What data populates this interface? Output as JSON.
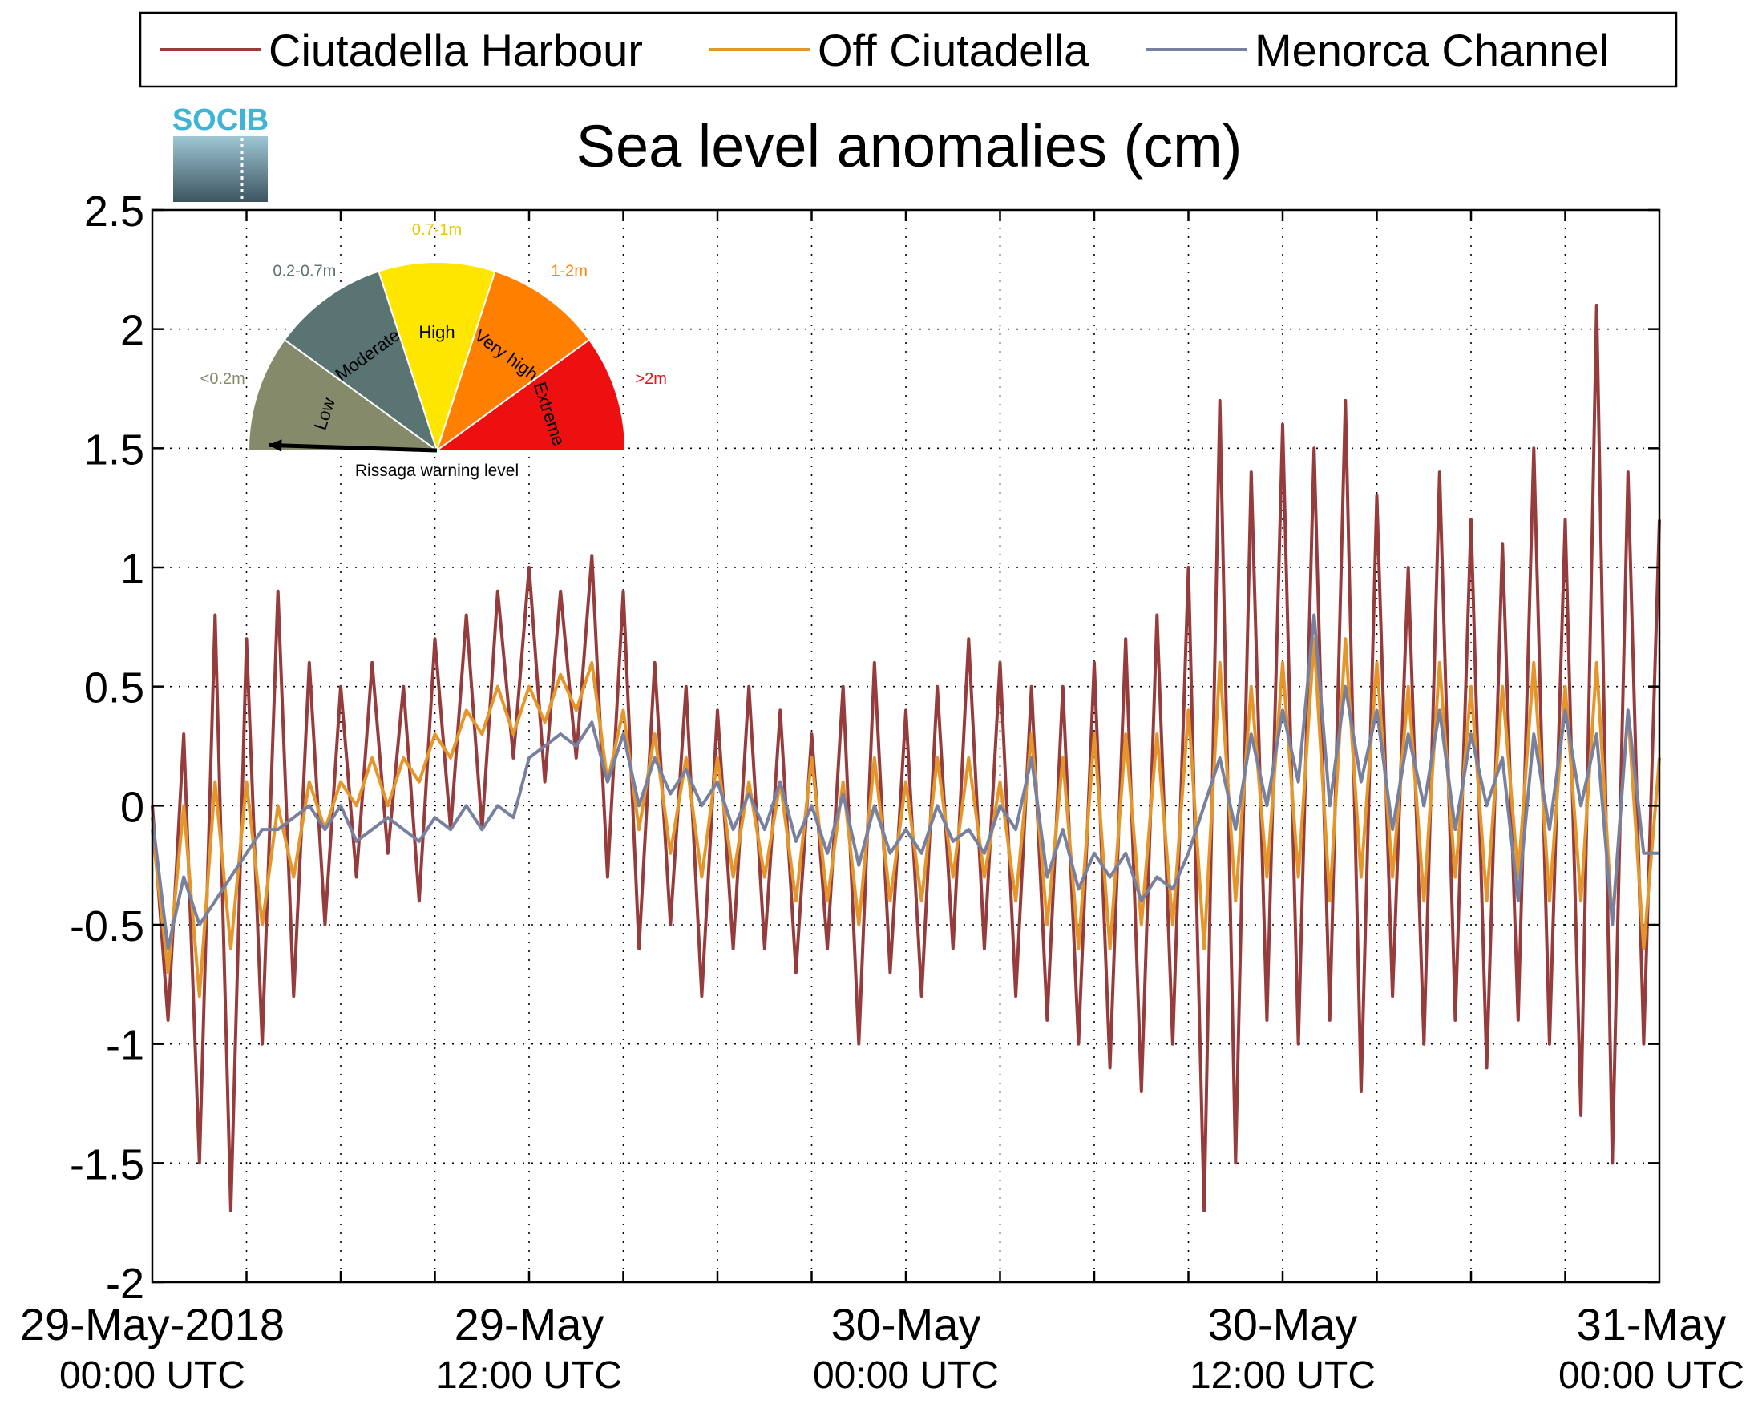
{
  "chart_data": {
    "type": "line",
    "title": "Sea level anomalies (cm)",
    "logo_text": "SOCIB",
    "ylim": [
      -2,
      2.5
    ],
    "y_ticks": [
      -2,
      -1.5,
      -1,
      -0.5,
      0,
      0.5,
      1,
      1.5,
      2,
      2.5
    ],
    "y_tick_labels": [
      "-2",
      "-1.5",
      "-1",
      "-0.5",
      "0",
      "0.5",
      "1",
      "1.5",
      "2",
      "2.5"
    ],
    "xlim_hours": [
      0,
      48
    ],
    "x_tick_labels": [
      {
        "h": 0,
        "line1": "29-May-2018",
        "line2": "00:00 UTC"
      },
      {
        "h": 12,
        "line1": "29-May",
        "line2": "12:00 UTC"
      },
      {
        "h": 24,
        "line1": "30-May",
        "line2": "00:00 UTC"
      },
      {
        "h": 36,
        "line1": "30-May",
        "line2": "12:00 UTC"
      },
      {
        "h": 48,
        "line1": "31-May",
        "line2": "00:00 UTC"
      }
    ],
    "grid": true,
    "legend_position": "top",
    "series": [
      {
        "name": "Ciutadella Harbour",
        "color": "#963c3c",
        "x_hours": [
          0,
          0.5,
          1,
          1.5,
          2,
          2.5,
          3,
          3.5,
          4,
          4.5,
          5,
          5.5,
          6,
          6.5,
          7,
          7.5,
          8,
          8.5,
          9,
          9.5,
          10,
          10.5,
          11,
          11.5,
          12,
          12.5,
          13,
          13.5,
          14,
          14.5,
          15,
          15.5,
          16,
          16.5,
          17,
          17.5,
          18,
          18.5,
          19,
          19.5,
          20,
          20.5,
          21,
          21.5,
          22,
          22.5,
          23,
          23.5,
          24,
          24.5,
          25,
          25.5,
          26,
          26.5,
          27,
          27.5,
          28,
          28.5,
          29,
          29.5,
          30,
          30.5,
          31,
          31.5,
          32,
          32.5,
          33,
          33.5,
          34,
          34.5,
          35,
          35.5,
          36,
          36.5,
          37,
          37.5,
          38,
          38.5,
          39,
          39.5,
          40,
          40.5,
          41,
          41.5,
          42,
          42.5,
          43,
          43.5,
          44,
          44.5,
          45,
          45.5,
          46,
          46.5,
          47,
          47.5,
          48
        ],
        "values": [
          0,
          -0.9,
          0.3,
          -1.5,
          0.8,
          -1.7,
          0.7,
          -1.0,
          0.9,
          -0.8,
          0.6,
          -0.5,
          0.5,
          -0.3,
          0.6,
          -0.2,
          0.5,
          -0.4,
          0.7,
          -0.1,
          0.8,
          -0.1,
          0.9,
          0.2,
          1.0,
          0.1,
          0.9,
          0.2,
          1.05,
          -0.3,
          0.9,
          -0.6,
          0.6,
          -0.5,
          0.5,
          -0.8,
          0.4,
          -0.6,
          0.5,
          -0.6,
          0.4,
          -0.7,
          0.3,
          -0.6,
          0.5,
          -1.0,
          0.6,
          -0.7,
          0.4,
          -0.8,
          0.5,
          -0.6,
          0.7,
          -0.6,
          0.6,
          -0.8,
          0.5,
          -0.9,
          0.5,
          -1.0,
          0.6,
          -1.1,
          0.7,
          -1.2,
          0.8,
          -1.0,
          1.0,
          -1.7,
          1.7,
          -1.5,
          1.4,
          -0.9,
          1.6,
          -1.0,
          1.5,
          -0.9,
          1.7,
          -1.2,
          1.3,
          -0.8,
          1.0,
          -1.0,
          1.4,
          -0.9,
          1.2,
          -1.1,
          1.1,
          -0.9,
          1.5,
          -1.0,
          1.2,
          -1.3,
          2.1,
          -1.5,
          1.4,
          -1.0,
          1.2
        ]
      },
      {
        "name": "Off Ciutadella",
        "color": "#e5962a",
        "x_hours": [
          0,
          0.5,
          1,
          1.5,
          2,
          2.5,
          3,
          3.5,
          4,
          4.5,
          5,
          5.5,
          6,
          6.5,
          7,
          7.5,
          8,
          8.5,
          9,
          9.5,
          10,
          10.5,
          11,
          11.5,
          12,
          12.5,
          13,
          13.5,
          14,
          14.5,
          15,
          15.5,
          16,
          16.5,
          17,
          17.5,
          18,
          18.5,
          19,
          19.5,
          20,
          20.5,
          21,
          21.5,
          22,
          22.5,
          23,
          23.5,
          24,
          24.5,
          25,
          25.5,
          26,
          26.5,
          27,
          27.5,
          28,
          28.5,
          29,
          29.5,
          30,
          30.5,
          31,
          31.5,
          32,
          32.5,
          33,
          33.5,
          34,
          34.5,
          35,
          35.5,
          36,
          36.5,
          37,
          37.5,
          38,
          38.5,
          39,
          39.5,
          40,
          40.5,
          41,
          41.5,
          42,
          42.5,
          43,
          43.5,
          44,
          44.5,
          45,
          45.5,
          46,
          46.5,
          47,
          47.5,
          48
        ],
        "values": [
          -0.1,
          -0.7,
          0.0,
          -0.8,
          0.1,
          -0.6,
          0.1,
          -0.5,
          0.0,
          -0.3,
          0.1,
          -0.1,
          0.1,
          0.0,
          0.2,
          0.0,
          0.2,
          0.1,
          0.3,
          0.2,
          0.4,
          0.3,
          0.5,
          0.3,
          0.5,
          0.35,
          0.55,
          0.4,
          0.6,
          0.1,
          0.4,
          -0.1,
          0.3,
          -0.2,
          0.2,
          -0.3,
          0.2,
          -0.3,
          0.1,
          -0.3,
          0.1,
          -0.4,
          0.2,
          -0.4,
          0.1,
          -0.5,
          0.2,
          -0.4,
          0.1,
          -0.4,
          0.2,
          -0.3,
          0.2,
          -0.3,
          0.1,
          -0.4,
          0.3,
          -0.5,
          0.2,
          -0.6,
          0.3,
          -0.6,
          0.3,
          -0.5,
          0.3,
          -0.5,
          0.4,
          -0.6,
          0.6,
          -0.4,
          0.5,
          -0.3,
          0.6,
          -0.3,
          0.7,
          -0.4,
          0.7,
          -0.3,
          0.6,
          -0.3,
          0.5,
          -0.4,
          0.6,
          -0.3,
          0.5,
          -0.4,
          0.5,
          -0.3,
          0.6,
          -0.4,
          0.5,
          -0.4,
          0.6,
          -0.5,
          0.4,
          -0.6,
          0.2
        ]
      },
      {
        "name": "Menorca Channel",
        "color": "#7880a0",
        "x_hours": [
          0,
          0.5,
          1,
          1.5,
          2,
          2.5,
          3,
          3.5,
          4,
          4.5,
          5,
          5.5,
          6,
          6.5,
          7,
          7.5,
          8,
          8.5,
          9,
          9.5,
          10,
          10.5,
          11,
          11.5,
          12,
          12.5,
          13,
          13.5,
          14,
          14.5,
          15,
          15.5,
          16,
          16.5,
          17,
          17.5,
          18,
          18.5,
          19,
          19.5,
          20,
          20.5,
          21,
          21.5,
          22,
          22.5,
          23,
          23.5,
          24,
          24.5,
          25,
          25.5,
          26,
          26.5,
          27,
          27.5,
          28,
          28.5,
          29,
          29.5,
          30,
          30.5,
          31,
          31.5,
          32,
          32.5,
          33,
          33.5,
          34,
          34.5,
          35,
          35.5,
          36,
          36.5,
          37,
          37.5,
          38,
          38.5,
          39,
          39.5,
          40,
          40.5,
          41,
          41.5,
          42,
          42.5,
          43,
          43.5,
          44,
          44.5,
          45,
          45.5,
          46,
          46.5,
          47,
          47.5,
          48
        ],
        "values": [
          -0.05,
          -0.6,
          -0.3,
          -0.5,
          -0.4,
          -0.3,
          -0.2,
          -0.1,
          -0.1,
          -0.05,
          0.0,
          -0.1,
          0.0,
          -0.15,
          -0.1,
          -0.05,
          -0.1,
          -0.15,
          -0.05,
          -0.1,
          0.0,
          -0.1,
          0.0,
          -0.05,
          0.2,
          0.25,
          0.3,
          0.25,
          0.35,
          0.1,
          0.3,
          0.0,
          0.2,
          0.05,
          0.15,
          0.0,
          0.1,
          -0.1,
          0.05,
          -0.1,
          0.1,
          -0.15,
          0.0,
          -0.2,
          0.05,
          -0.25,
          0.0,
          -0.2,
          -0.1,
          -0.2,
          0.0,
          -0.15,
          -0.1,
          -0.2,
          0.0,
          -0.1,
          0.2,
          -0.3,
          -0.1,
          -0.35,
          -0.2,
          -0.3,
          -0.2,
          -0.4,
          -0.3,
          -0.35,
          -0.2,
          0.0,
          0.2,
          -0.1,
          0.3,
          0.0,
          0.4,
          0.1,
          0.8,
          0.0,
          0.5,
          0.1,
          0.4,
          -0.1,
          0.3,
          0.0,
          0.4,
          -0.1,
          0.3,
          0.0,
          0.2,
          -0.4,
          0.3,
          -0.1,
          0.4,
          0.0,
          0.3,
          -0.5,
          0.4,
          -0.2,
          -0.2
        ]
      }
    ],
    "gauge": {
      "caption": "Rissaga warning level",
      "segments": [
        {
          "label": "Low",
          "range_label": "<0.2m",
          "color": "#848a6a",
          "label_color": "#848a6a"
        },
        {
          "label": "Moderate",
          "range_label": "0.2-0.7m",
          "color": "#5a7373",
          "label_color": "#5a7373"
        },
        {
          "label": "High",
          "range_label": "0.7-1m",
          "color": "#ffe600",
          "label_color": "#e8c800"
        },
        {
          "label": "Very high",
          "range_label": "1-2m",
          "color": "#ff7f00",
          "label_color": "#ff7f00"
        },
        {
          "label": "Extreme",
          "range_label": ">2m",
          "color": "#ee1010",
          "label_color": "#ee1010"
        }
      ],
      "pointer_level": "Low"
    }
  }
}
